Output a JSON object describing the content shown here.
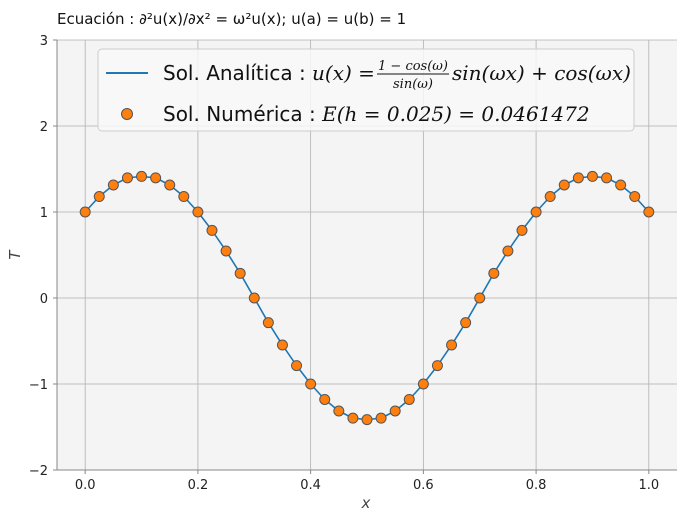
{
  "chart_data": {
    "type": "line",
    "title": "Ecuación : ∂²u(x)/∂x² = ω²u(x);  u(a) = u(b) = 1",
    "xlabel": "x",
    "ylabel": "T",
    "xlim": [
      -0.05,
      1.05
    ],
    "ylim": [
      -2,
      3
    ],
    "x_ticks": [
      0.0,
      0.2,
      0.4,
      0.6,
      0.8,
      1.0
    ],
    "x_tick_labels": [
      "0.0",
      "0.2",
      "0.4",
      "0.6",
      "0.8",
      "1.0"
    ],
    "y_ticks": [
      -2,
      -1,
      0,
      1,
      2,
      3
    ],
    "y_tick_labels": [
      "−2",
      "−1",
      "0",
      "1",
      "2",
      "3"
    ],
    "grid": true,
    "legend_position": "top",
    "colors": {
      "line": "#1f77b4",
      "marker_fill": "#ff7f0e",
      "marker_edge": "#555555",
      "plot_background": "#f4f4f4",
      "grid": "#b0b0b0"
    },
    "series": [
      {
        "name": "Sol. Analítica : u(x) = (1 − cos(ω))/sin(ω) · sin(ωx) + cos(ωx)",
        "name_parts": {
          "prefix": "Sol. Analítica : ",
          "lhs": "u(x) = ",
          "frac_num": "1 − cos(ω)",
          "frac_den": "sin(ω)",
          "rhs": "sin(ωx) + cos(ωx)"
        },
        "kind": "line",
        "x": [
          0.0,
          0.025,
          0.05,
          0.075,
          0.1,
          0.125,
          0.15,
          0.175,
          0.2,
          0.225,
          0.25,
          0.275,
          0.3,
          0.325,
          0.35,
          0.375,
          0.4,
          0.425,
          0.45,
          0.475,
          0.5,
          0.525,
          0.55,
          0.575,
          0.6,
          0.625,
          0.65,
          0.675,
          0.7,
          0.725,
          0.75,
          0.775,
          0.8,
          0.825,
          0.85,
          0.875,
          0.9,
          0.925,
          0.95,
          0.975,
          1.0
        ],
        "values": [
          1.0,
          1.18,
          1.314,
          1.397,
          1.414,
          1.397,
          1.314,
          1.18,
          1.0,
          0.786,
          0.547,
          0.287,
          0.0,
          -0.287,
          -0.547,
          -0.786,
          -1.0,
          -1.18,
          -1.314,
          -1.397,
          -1.414,
          -1.397,
          -1.314,
          -1.18,
          -1.0,
          -0.786,
          -0.547,
          -0.287,
          0.0,
          0.287,
          0.547,
          0.786,
          1.0,
          1.18,
          1.314,
          1.397,
          1.414,
          1.397,
          1.314,
          1.18,
          1.0
        ]
      },
      {
        "name": "Sol. Numérica : E(h = 0.025) = 0.0461472",
        "name_parts": {
          "prefix": "Sol. Numérica : ",
          "math": "E(h = 0.025) = 0.0461472"
        },
        "kind": "scatter",
        "x": [
          0.0,
          0.025,
          0.05,
          0.075,
          0.1,
          0.125,
          0.15,
          0.175,
          0.2,
          0.225,
          0.25,
          0.275,
          0.3,
          0.325,
          0.35,
          0.375,
          0.4,
          0.425,
          0.45,
          0.475,
          0.5,
          0.525,
          0.55,
          0.575,
          0.6,
          0.625,
          0.65,
          0.675,
          0.7,
          0.725,
          0.75,
          0.775,
          0.8,
          0.825,
          0.85,
          0.875,
          0.9,
          0.925,
          0.95,
          0.975,
          1.0
        ],
        "values": [
          1.0,
          1.18,
          1.314,
          1.397,
          1.414,
          1.397,
          1.314,
          1.18,
          1.0,
          0.786,
          0.547,
          0.287,
          0.0,
          -0.287,
          -0.547,
          -0.786,
          -1.0,
          -1.18,
          -1.314,
          -1.397,
          -1.414,
          -1.397,
          -1.314,
          -1.18,
          -1.0,
          -0.786,
          -0.547,
          -0.287,
          0.0,
          0.287,
          0.547,
          0.786,
          1.0,
          1.18,
          1.314,
          1.397,
          1.414,
          1.397,
          1.314,
          1.18,
          1.0
        ]
      }
    ]
  }
}
